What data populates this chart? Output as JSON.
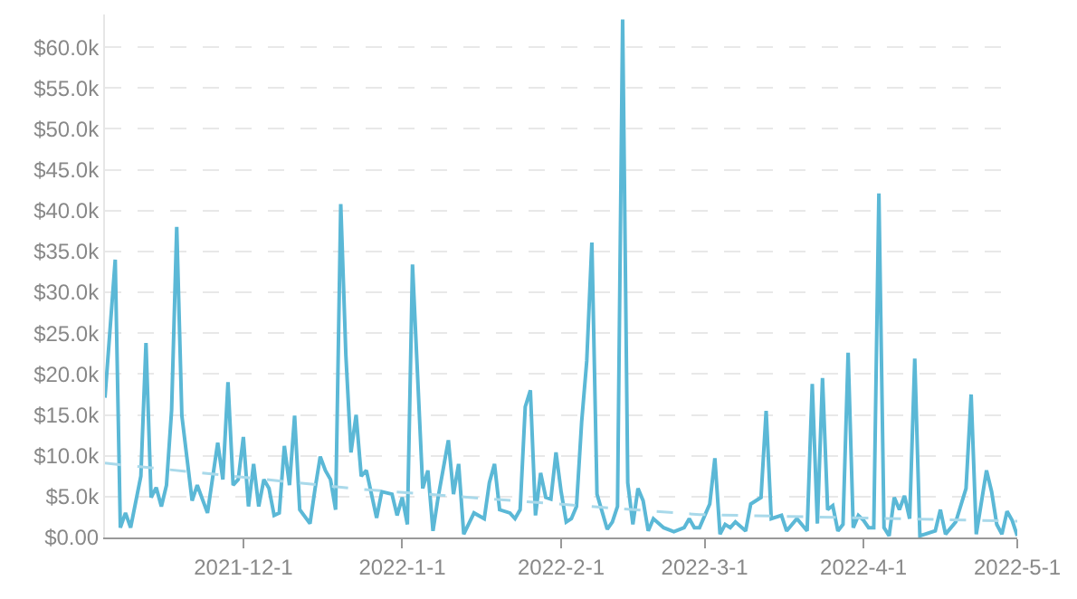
{
  "chart_data": {
    "type": "line",
    "xlim": [
      "2021-11-04",
      "2022-05-01"
    ],
    "xticks": [
      {
        "value": "2021-12-01",
        "label": "2021-12-1"
      },
      {
        "value": "2022-01-01",
        "label": "2022-1-1"
      },
      {
        "value": "2022-02-01",
        "label": "2022-2-1"
      },
      {
        "value": "2022-03-01",
        "label": "2022-3-1"
      },
      {
        "value": "2022-04-01",
        "label": "2022-4-1"
      },
      {
        "value": "2022-05-01",
        "label": "2022-5-1"
      }
    ],
    "ylim": [
      0,
      64000
    ],
    "yticks": [
      {
        "value": 0,
        "label": "$0.00"
      },
      {
        "value": 5000,
        "label": "$5.0k"
      },
      {
        "value": 10000,
        "label": "$10.0k"
      },
      {
        "value": 15000,
        "label": "$15.0k"
      },
      {
        "value": 20000,
        "label": "$20.0k"
      },
      {
        "value": 25000,
        "label": "$25.0k"
      },
      {
        "value": 30000,
        "label": "$30.0k"
      },
      {
        "value": 35000,
        "label": "$35.0k"
      },
      {
        "value": 40000,
        "label": "$40.0k"
      },
      {
        "value": 45000,
        "label": "$45.0k"
      },
      {
        "value": 50000,
        "label": "$50.0k"
      },
      {
        "value": 55000,
        "label": "$55.0k"
      },
      {
        "value": 60000,
        "label": "$60.0k"
      }
    ],
    "grid": "y",
    "marker": "none",
    "series": [
      {
        "color": "#5bb8d6",
        "line_style": "solid",
        "x": [
          "2021-11-04",
          "2021-11-06",
          "2021-11-07",
          "2021-11-08",
          "2021-11-09",
          "2021-11-11",
          "2021-11-12",
          "2021-11-13",
          "2021-11-14",
          "2021-11-15",
          "2021-11-16",
          "2021-11-17",
          "2021-11-18",
          "2021-11-19",
          "2021-11-21",
          "2021-11-22",
          "2021-11-24",
          "2021-11-26",
          "2021-11-27",
          "2021-11-28",
          "2021-11-29",
          "2021-11-30",
          "2021-12-01",
          "2021-12-02",
          "2021-12-03",
          "2021-12-04",
          "2021-12-05",
          "2021-12-06",
          "2021-12-07",
          "2021-12-08",
          "2021-12-09",
          "2021-12-10",
          "2021-12-11",
          "2021-12-12",
          "2021-12-14",
          "2021-12-15",
          "2021-12-16",
          "2021-12-17",
          "2021-12-18",
          "2021-12-19",
          "2021-12-20",
          "2021-12-21",
          "2021-12-22",
          "2021-12-23",
          "2021-12-24",
          "2021-12-25",
          "2021-12-27",
          "2021-12-28",
          "2021-12-30",
          "2021-12-31",
          "2022-01-01",
          "2022-01-02",
          "2022-01-03",
          "2022-01-05",
          "2022-01-06",
          "2022-01-07",
          "2022-01-08",
          "2022-01-10",
          "2022-01-11",
          "2022-01-12",
          "2022-01-13",
          "2022-01-15",
          "2022-01-17",
          "2022-01-18",
          "2022-01-19",
          "2022-01-20",
          "2022-01-22",
          "2022-01-23",
          "2022-01-24",
          "2022-01-25",
          "2022-01-26",
          "2022-01-27",
          "2022-01-28",
          "2022-01-29",
          "2022-01-30",
          "2022-01-31",
          "2022-02-01",
          "2022-02-02",
          "2022-02-03",
          "2022-02-04",
          "2022-02-05",
          "2022-02-06",
          "2022-02-07",
          "2022-02-08",
          "2022-02-10",
          "2022-02-11",
          "2022-02-12",
          "2022-02-13",
          "2022-02-14",
          "2022-02-15",
          "2022-02-16",
          "2022-02-17",
          "2022-02-18",
          "2022-02-19",
          "2022-02-21",
          "2022-02-23",
          "2022-02-25",
          "2022-02-26",
          "2022-02-27",
          "2022-02-28",
          "2022-03-02",
          "2022-03-03",
          "2022-03-04",
          "2022-03-05",
          "2022-03-06",
          "2022-03-07",
          "2022-03-09",
          "2022-03-10",
          "2022-03-12",
          "2022-03-13",
          "2022-03-14",
          "2022-03-16",
          "2022-03-17",
          "2022-03-19",
          "2022-03-21",
          "2022-03-22",
          "2022-03-23",
          "2022-03-24",
          "2022-03-25",
          "2022-03-26",
          "2022-03-27",
          "2022-03-28",
          "2022-03-29",
          "2022-03-30",
          "2022-03-31",
          "2022-04-01",
          "2022-04-02",
          "2022-04-03",
          "2022-04-04",
          "2022-04-05",
          "2022-04-06",
          "2022-04-07",
          "2022-04-08",
          "2022-04-09",
          "2022-04-10",
          "2022-04-11",
          "2022-04-12",
          "2022-04-13",
          "2022-04-15",
          "2022-04-16",
          "2022-04-17",
          "2022-04-19",
          "2022-04-21",
          "2022-04-22",
          "2022-04-23",
          "2022-04-25",
          "2022-04-26",
          "2022-04-27",
          "2022-04-28",
          "2022-04-29",
          "2022-04-30",
          "2022-05-01"
        ],
        "values": [
          17100,
          34000,
          1200,
          3000,
          1200,
          7500,
          23800,
          4900,
          6100,
          3800,
          6400,
          15600,
          38000,
          14900,
          4500,
          6400,
          3000,
          11600,
          7100,
          19000,
          6400,
          7100,
          12300,
          3800,
          9000,
          3800,
          7100,
          6000,
          2700,
          3000,
          11200,
          6400,
          14900,
          3400,
          1700,
          6000,
          9900,
          8200,
          7100,
          3400,
          40800,
          22300,
          10400,
          15000,
          7500,
          8200,
          2400,
          5600,
          5300,
          2700,
          4900,
          1600,
          33400,
          6000,
          8200,
          800,
          4900,
          11900,
          5300,
          9000,
          400,
          3000,
          2300,
          6700,
          9000,
          3400,
          3000,
          2300,
          3400,
          16000,
          18000,
          2700,
          7900,
          4900,
          4700,
          10400,
          5600,
          1900,
          2300,
          3800,
          14100,
          21600,
          36100,
          5300,
          1000,
          1900,
          3800,
          63400,
          6700,
          1600,
          6000,
          4500,
          800,
          2300,
          1200,
          700,
          1200,
          2300,
          1200,
          1200,
          4100,
          9700,
          400,
          1600,
          1200,
          1900,
          800,
          4100,
          4900,
          15500,
          2300,
          2700,
          800,
          2300,
          800,
          18800,
          1700,
          19500,
          3400,
          3900,
          800,
          1600,
          22600,
          1200,
          2700,
          2100,
          1200,
          1200,
          42100,
          1200,
          200,
          4900,
          3400,
          5100,
          2300,
          21900,
          200,
          400,
          800,
          3400,
          400,
          1900,
          6000,
          17500,
          400,
          8200,
          5600,
          1600,
          400,
          3200,
          2100,
          200
        ]
      },
      {
        "color": "#a9d9ea",
        "line_style": "dashed",
        "x": [
          "2021-11-04",
          "2021-12-24",
          "2022-02-28",
          "2022-05-01"
        ],
        "values": [
          9100,
          5900,
          2800,
          2000
        ]
      }
    ]
  }
}
